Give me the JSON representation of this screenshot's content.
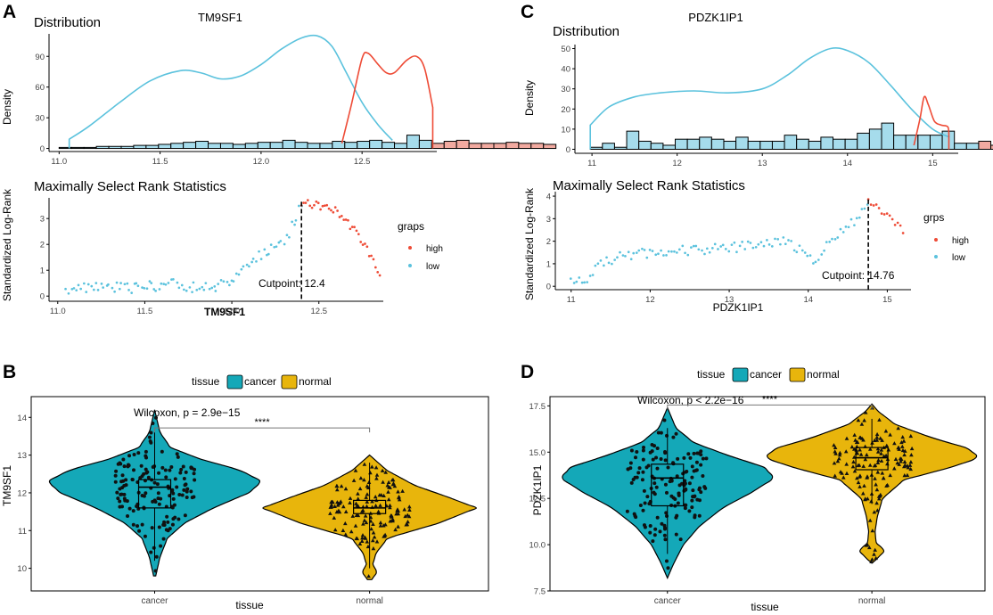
{
  "colors": {
    "cyan": "#5bc2dd",
    "cyan_fill": "#a6dcec",
    "red": "#ee4b36",
    "red_fill": "#f2aaa0",
    "teal": "#14a8b8",
    "gold": "#e8b50c",
    "axis": "#000000",
    "grid_text": "#444444"
  },
  "panels": {
    "A": {
      "letter": "A"
    },
    "B": {
      "letter": "B"
    },
    "C": {
      "letter": "C"
    },
    "D": {
      "letter": "D"
    }
  },
  "chart_data": [
    {
      "id": "A-dist",
      "type": "area",
      "gene": "TM9SF1",
      "title": "Distribution",
      "ylabel": "Density",
      "xlim": [
        10.95,
        12.87
      ],
      "ylim": [
        -3,
        112
      ],
      "xticks": [
        11.0,
        11.5,
        12.0,
        12.5
      ],
      "xtick_labels": [
        "11.0",
        "11.5",
        "12.0",
        "12.5"
      ],
      "yticks": [
        0,
        30,
        60,
        90
      ],
      "ytick_labels": [
        "0",
        "30",
        "60",
        "90"
      ],
      "cutpoint": 12.4,
      "low_curve": [
        [
          11.05,
          9
        ],
        [
          11.15,
          22
        ],
        [
          11.3,
          45
        ],
        [
          11.45,
          66
        ],
        [
          11.6,
          76
        ],
        [
          11.7,
          74
        ],
        [
          11.8,
          68
        ],
        [
          11.9,
          71
        ],
        [
          12.0,
          82
        ],
        [
          12.1,
          97
        ],
        [
          12.2,
          108
        ],
        [
          12.28,
          110
        ],
        [
          12.35,
          100
        ],
        [
          12.42,
          75
        ],
        [
          12.5,
          45
        ],
        [
          12.58,
          23
        ],
        [
          12.65,
          8
        ]
      ],
      "high_curve": [
        [
          12.4,
          5
        ],
        [
          12.45,
          45
        ],
        [
          12.5,
          88
        ],
        [
          12.53,
          93
        ],
        [
          12.58,
          82
        ],
        [
          12.62,
          74
        ],
        [
          12.66,
          74
        ],
        [
          12.72,
          86
        ],
        [
          12.77,
          90
        ],
        [
          12.81,
          78
        ],
        [
          12.85,
          40
        ]
      ],
      "hist_edge": 11.0,
      "hist_bin": 0.0615,
      "hist_low": [
        1,
        1,
        1,
        2,
        2,
        2,
        3,
        3,
        4,
        5,
        6,
        7,
        5,
        5,
        4,
        5,
        6,
        6,
        8,
        6,
        5,
        5,
        7,
        6,
        7,
        8,
        6,
        5,
        13,
        8
      ],
      "hist_high": [
        5,
        7,
        8,
        5,
        5,
        5,
        6,
        5,
        5,
        4
      ]
    },
    {
      "id": "A-rank",
      "type": "scatter",
      "gene": "TM9SF1",
      "title": "Maximally Select Rank Statistics",
      "xlabel": "TM9SF1",
      "ylabel": "Standardized Log-Rank",
      "xlim": [
        10.95,
        12.87
      ],
      "ylim": [
        -0.2,
        3.8
      ],
      "xticks": [
        11.0,
        11.5,
        12.0,
        12.5
      ],
      "xtick_labels": [
        "11.0",
        "11.5",
        "12.0",
        "12.5"
      ],
      "yticks": [
        0,
        1,
        2,
        3
      ],
      "ytick_labels": [
        "0",
        "1",
        "2",
        "3"
      ],
      "cutpoint": 12.4,
      "cutpoint_label": "Cutpoint: 12.4",
      "legend_title": "graps",
      "legend_items": [
        "high",
        "low"
      ],
      "low_ctrl": [
        [
          11.05,
          0.3
        ],
        [
          11.3,
          0.4
        ],
        [
          11.5,
          0.3
        ],
        [
          11.62,
          0.5
        ],
        [
          11.75,
          0.3
        ],
        [
          11.9,
          0.4
        ],
        [
          12.0,
          0.6
        ],
        [
          12.05,
          1.0
        ],
        [
          12.12,
          1.4
        ],
        [
          12.2,
          1.7
        ],
        [
          12.28,
          2.0
        ],
        [
          12.35,
          2.7
        ],
        [
          12.4,
          3.5
        ]
      ],
      "high_ctrl": [
        [
          12.4,
          3.6
        ],
        [
          12.5,
          3.5
        ],
        [
          12.6,
          3.3
        ],
        [
          12.7,
          2.6
        ],
        [
          12.78,
          1.8
        ],
        [
          12.85,
          0.8
        ]
      ],
      "low_n": 95,
      "high_n": 38
    },
    {
      "id": "C-dist",
      "type": "area",
      "gene": "PDZK1IP1",
      "title": "Distribution",
      "ylabel": "Density",
      "xlim": [
        10.8,
        15.3
      ],
      "ylim": [
        -2,
        52
      ],
      "xticks": [
        11,
        12,
        13,
        14,
        15
      ],
      "xtick_labels": [
        "11",
        "12",
        "13",
        "14",
        "15"
      ],
      "yticks": [
        0,
        10,
        20,
        30,
        40,
        50
      ],
      "ytick_labels": [
        "0",
        "10",
        "20",
        "30",
        "40",
        "50"
      ],
      "cutpoint": 14.76,
      "low_curve": [
        [
          10.98,
          12
        ],
        [
          11.2,
          21
        ],
        [
          11.5,
          26
        ],
        [
          11.8,
          28
        ],
        [
          12.2,
          29
        ],
        [
          12.6,
          28
        ],
        [
          13.0,
          30
        ],
        [
          13.3,
          37
        ],
        [
          13.55,
          45
        ],
        [
          13.8,
          50
        ],
        [
          14.0,
          49
        ],
        [
          14.25,
          43
        ],
        [
          14.5,
          32
        ],
        [
          14.75,
          20
        ],
        [
          15.0,
          10
        ],
        [
          15.2,
          6
        ]
      ],
      "high_curve": [
        [
          14.78,
          2
        ],
        [
          14.85,
          15
        ],
        [
          14.9,
          26
        ],
        [
          14.95,
          22
        ],
        [
          15.02,
          14
        ],
        [
          15.1,
          12
        ],
        [
          15.18,
          11
        ],
        [
          15.19,
          5
        ]
      ],
      "hist_edge": 10.98,
      "hist_bin": 0.1425,
      "hist_low": [
        1,
        3,
        1,
        9,
        4,
        3,
        2,
        5,
        5,
        6,
        5,
        4,
        6,
        4,
        4,
        4,
        7,
        5,
        4,
        6,
        5,
        5,
        8,
        10,
        13,
        7,
        7,
        7,
        7,
        9,
        3,
        3
      ],
      "hist_high": [
        4,
        2,
        2
      ]
    },
    {
      "id": "C-rank",
      "type": "scatter",
      "gene": "PDZK1IP1",
      "title": "Maximally Select Rank Statistics",
      "xlabel": "PDZK1IP1",
      "ylabel": "Standardized Log-Rank",
      "xlim": [
        10.8,
        15.3
      ],
      "ylim": [
        -0.15,
        4.2
      ],
      "xticks": [
        11,
        12,
        13,
        14,
        15
      ],
      "xtick_labels": [
        "11",
        "12",
        "13",
        "14",
        "15"
      ],
      "yticks": [
        0,
        1,
        2,
        3,
        4
      ],
      "ytick_labels": [
        "0",
        "1",
        "2",
        "3",
        "4"
      ],
      "cutpoint": 14.76,
      "cutpoint_label": "Cutpoint: 14.76",
      "legend_title": "grps",
      "legend_items": [
        "high",
        "low"
      ],
      "low_ctrl": [
        [
          11.0,
          0.2
        ],
        [
          11.2,
          0.4
        ],
        [
          11.4,
          1.0
        ],
        [
          11.6,
          1.3
        ],
        [
          12.0,
          1.5
        ],
        [
          12.5,
          1.6
        ],
        [
          13.0,
          1.7
        ],
        [
          13.5,
          1.9
        ],
        [
          13.7,
          2.0
        ],
        [
          13.9,
          1.6
        ],
        [
          14.05,
          1.1
        ],
        [
          14.3,
          2.0
        ],
        [
          14.55,
          2.8
        ],
        [
          14.75,
          3.6
        ]
      ],
      "high_ctrl": [
        [
          14.76,
          3.8
        ],
        [
          14.9,
          3.4
        ],
        [
          15.05,
          3.0
        ],
        [
          15.2,
          2.5
        ]
      ],
      "low_n": 110,
      "high_n": 14
    },
    {
      "id": "B-violin",
      "type": "violin",
      "title": "Wilcoxon, p = 2.9e−15",
      "xlabel": "tissue",
      "ylabel": "TM9SF1",
      "categories": [
        "cancer",
        "normal"
      ],
      "legend_title": "tissue",
      "legend_items": [
        "cancer",
        "normal"
      ],
      "ylim": [
        9.4,
        14.55
      ],
      "yticks": [
        10,
        11,
        12,
        13,
        14
      ],
      "ytick_labels": [
        "10",
        "11",
        "12",
        "13",
        "14"
      ],
      "signif": "****",
      "bracket_y": 13.72,
      "violins": [
        {
          "name": "cancer",
          "ymin": 9.8,
          "ymax": 14.2,
          "maxw": 120,
          "profile": [
            [
              9.8,
              0.01
            ],
            [
              10.3,
              0.05
            ],
            [
              10.8,
              0.12
            ],
            [
              11.2,
              0.28
            ],
            [
              11.6,
              0.55
            ],
            [
              12.0,
              0.88
            ],
            [
              12.3,
              1.0
            ],
            [
              12.6,
              0.8
            ],
            [
              12.9,
              0.42
            ],
            [
              13.2,
              0.15
            ],
            [
              13.6,
              0.05
            ],
            [
              14.2,
              0.0
            ]
          ],
          "box": {
            "q1": 11.6,
            "median": 12.15,
            "q3": 12.35,
            "lo": 10.2,
            "hi": 13.6
          },
          "n": 150
        },
        {
          "name": "normal",
          "ymin": 9.7,
          "ymax": 13.0,
          "maxw": 120,
          "profile": [
            [
              9.7,
              0.02
            ],
            [
              9.9,
              0.07
            ],
            [
              10.1,
              0.03
            ],
            [
              10.4,
              0.06
            ],
            [
              10.8,
              0.17
            ],
            [
              11.2,
              0.65
            ],
            [
              11.6,
              1.0
            ],
            [
              11.9,
              0.72
            ],
            [
              12.2,
              0.42
            ],
            [
              12.6,
              0.16
            ],
            [
              13.0,
              0.0
            ]
          ],
          "box": {
            "q1": 11.45,
            "median": 11.6,
            "q3": 11.8,
            "lo": 10.0,
            "hi": 12.8
          },
          "n": 150
        }
      ]
    },
    {
      "id": "D-violin",
      "type": "violin",
      "title": "Wilcoxon, p < 2.2e−16",
      "xlabel": "tissue",
      "ylabel": "PDZK1IP1",
      "categories": [
        "cancer",
        "normal"
      ],
      "legend_title": "tissue",
      "legend_items": [
        "cancer",
        "normal"
      ],
      "ylim": [
        7.5,
        18.0
      ],
      "yticks": [
        7.5,
        10.0,
        12.5,
        15.0,
        17.5
      ],
      "ytick_labels": [
        "7.5",
        "10.0",
        "12.5",
        "15.0",
        "17.5"
      ],
      "signif": "****",
      "bracket_y": 17.55,
      "violins": [
        {
          "name": "cancer",
          "ymin": 8.2,
          "ymax": 17.4,
          "maxw": 120,
          "profile": [
            [
              8.2,
              0.0
            ],
            [
              9.0,
              0.06
            ],
            [
              10.0,
              0.15
            ],
            [
              11.0,
              0.3
            ],
            [
              12.0,
              0.52
            ],
            [
              12.8,
              0.78
            ],
            [
              13.6,
              1.0
            ],
            [
              14.2,
              0.9
            ],
            [
              14.8,
              0.58
            ],
            [
              15.5,
              0.25
            ],
            [
              16.3,
              0.08
            ],
            [
              17.4,
              0.0
            ]
          ],
          "box": {
            "q1": 12.1,
            "median": 13.6,
            "q3": 14.35,
            "lo": 9.5,
            "hi": 16.3
          },
          "n": 150
        },
        {
          "name": "normal",
          "ymin": 9.0,
          "ymax": 17.6,
          "maxw": 120,
          "profile": [
            [
              9.0,
              0.0
            ],
            [
              9.3,
              0.06
            ],
            [
              9.7,
              0.12
            ],
            [
              10.1,
              0.04
            ],
            [
              10.7,
              0.03
            ],
            [
              11.5,
              0.05
            ],
            [
              12.5,
              0.1
            ],
            [
              13.5,
              0.3
            ],
            [
              14.2,
              0.75
            ],
            [
              14.7,
              1.0
            ],
            [
              15.2,
              0.9
            ],
            [
              15.8,
              0.55
            ],
            [
              16.5,
              0.22
            ],
            [
              17.2,
              0.06
            ],
            [
              17.6,
              0.0
            ]
          ],
          "box": {
            "q1": 14.05,
            "median": 14.7,
            "q3": 15.25,
            "lo": 12.2,
            "hi": 16.8
          },
          "n": 150
        }
      ]
    }
  ]
}
